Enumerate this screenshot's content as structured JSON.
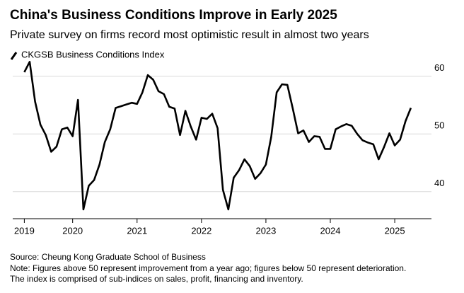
{
  "chart_data": {
    "type": "line",
    "title": "China's Business Conditions Improve in Early 2025",
    "subtitle": "Private survey on firms record most optimistic result in almost two years",
    "source": "Source: Cheung Kong Graduate School of Business",
    "notes": [
      "Note: Figures above 50 represent improvement from a year ago; figures below 50 represent deterioration.",
      "The index is comprised of sub-indices on sales, profit, financing and inventory."
    ],
    "x": [
      2019.25,
      2019.333,
      2019.417,
      2019.5,
      2019.583,
      2019.667,
      2019.75,
      2019.833,
      2019.917,
      2020,
      2020.083,
      2020.167,
      2020.25,
      2020.333,
      2020.417,
      2020.5,
      2020.583,
      2020.667,
      2020.75,
      2020.833,
      2020.917,
      2021,
      2021.083,
      2021.167,
      2021.25,
      2021.333,
      2021.417,
      2021.5,
      2021.583,
      2021.667,
      2021.75,
      2021.833,
      2021.917,
      2022,
      2022.083,
      2022.167,
      2022.25,
      2022.333,
      2022.417,
      2022.5,
      2022.583,
      2022.667,
      2022.75,
      2022.833,
      2022.917,
      2023,
      2023.083,
      2023.167,
      2023.25,
      2023.333,
      2023.417,
      2023.5,
      2023.583,
      2023.667,
      2023.75,
      2023.833,
      2023.917,
      2024,
      2024.083,
      2024.167,
      2024.25,
      2024.333,
      2024.417,
      2024.5,
      2024.583,
      2024.667,
      2024.75,
      2024.833,
      2024.917,
      2025,
      2025.083,
      2025.167,
      2025.25
    ],
    "series": [
      {
        "name": "CKGSB Business Conditions Index",
        "color": "#000000",
        "values": [
          60.7,
          62.5,
          55.6,
          51.6,
          49.8,
          46.9,
          47.8,
          50.8,
          51.1,
          49.6,
          55.9,
          36.9,
          41.0,
          42.0,
          44.7,
          48.6,
          50.8,
          54.5,
          54.8,
          55.1,
          55.4,
          55.2,
          57.2,
          60.2,
          59.4,
          57.4,
          56.9,
          54.7,
          54.4,
          49.8,
          54.0,
          51.3,
          49.0,
          52.8,
          52.6,
          53.5,
          51.0,
          40.3,
          36.9,
          42.4,
          43.7,
          45.6,
          44.4,
          42.2,
          43.2,
          44.7,
          49.5,
          57.2,
          58.6,
          58.5,
          54.4,
          50.1,
          50.6,
          48.6,
          49.6,
          49.5,
          47.4,
          47.4,
          50.8,
          51.3,
          51.7,
          51.4,
          50.0,
          48.9,
          48.5,
          48.2,
          45.6,
          47.7,
          50.1,
          48.0,
          49.0,
          52.2,
          54.5
        ]
      }
    ],
    "xlim": [
      2019.07,
      2025.57
    ],
    "xticks": [
      {
        "value": 2019.25,
        "label": "2019"
      },
      2020,
      2021,
      2022,
      2023,
      2024,
      2025
    ],
    "ylim": [
      35.3,
      63.4
    ],
    "yticks": [
      40,
      50,
      60
    ],
    "grid": true
  }
}
